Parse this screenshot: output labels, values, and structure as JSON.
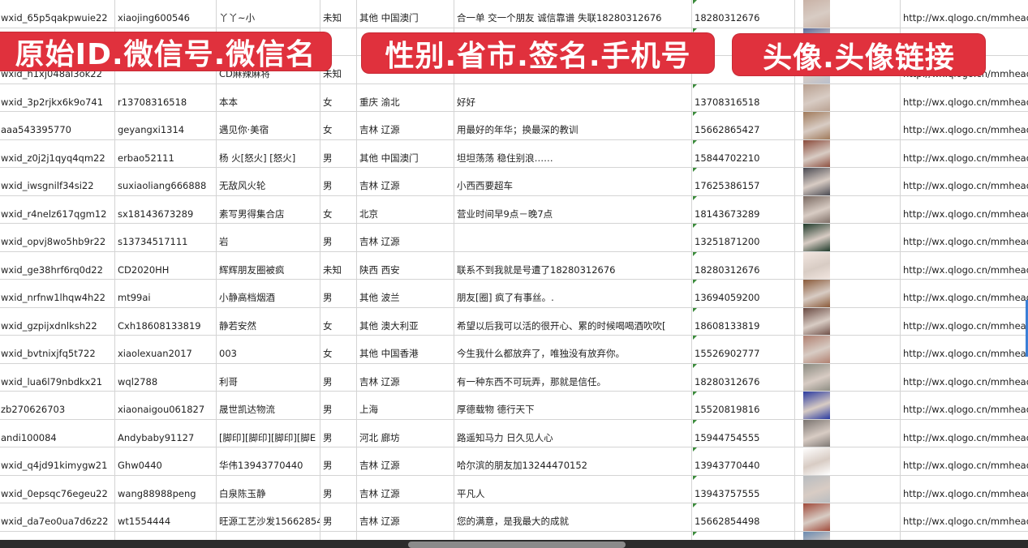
{
  "banners": {
    "left": "原始ID.微信号.微信名",
    "middle": "性别.省市.签名.手机号",
    "right": "头像.头像链接"
  },
  "rows": [
    {
      "id": "wxid_65p5qakpwuie22",
      "wechat": "xiaojing600546",
      "name": "丫丫~小",
      "gender": "未知",
      "region": "其他 中国澳门",
      "signature": "合一单 交一个朋友 诚信靠谱 失联18280312676",
      "phone": "18280312676",
      "avatar_color": "#c9b2a6",
      "url": "http://wx.qlogo.cn/mmhead"
    },
    {
      "id": "",
      "wechat": "",
      "name": "",
      "gender": "",
      "region": "",
      "signature": "",
      "phone": "",
      "avatar_color": "#5a6a9a",
      "url": ""
    },
    {
      "id": "wxid_h1xj048al3ok22",
      "wechat": "",
      "name": "CD麻辣麻将",
      "gender": "未知",
      "region": "",
      "signature": "",
      "phone": "",
      "avatar_color": "#b9bfcc",
      "url": "http://wx.qlogo.cn/mmhead"
    },
    {
      "id": "wxid_3p2rjkx6k9o741",
      "wechat": "r13708316518",
      "name": "本本",
      "gender": "女",
      "region": "重庆 渝北",
      "signature": "好好",
      "phone": "13708316518",
      "avatar_color": "#b8a090",
      "url": "http://wx.qlogo.cn/mmhead"
    },
    {
      "id": "aaa543395770",
      "wechat": "geyangxi1314",
      "name": "遇见你·美宿",
      "gender": "女",
      "region": "吉林 辽源",
      "signature": "用最好的年华；换最深的教训",
      "phone": "15662865427",
      "avatar_color": "#a07a5a",
      "url": "http://wx.qlogo.cn/mmhead"
    },
    {
      "id": "wxid_z0j2j1qyq4qm22",
      "wechat": "erbao52111",
      "name": "杨 火[怒火] [怒火]",
      "gender": "男",
      "region": "其他 中国澳门",
      "signature": "坦坦荡荡 稳住别浪……",
      "phone": "15844702210",
      "avatar_color": "#8a4a3a",
      "url": "http://wx.qlogo.cn/mmhead"
    },
    {
      "id": "wxid_iwsgnilf34si22",
      "wechat": "suxiaoliang666888",
      "name": "无敌风火轮",
      "gender": "男",
      "region": "吉林 辽源",
      "signature": "小西西要超车",
      "phone": "17625386157",
      "avatar_color": "#4a4a52",
      "url": "http://wx.qlogo.cn/mmhead"
    },
    {
      "id": "wxid_r4nelz617qgm12",
      "wechat": "sx18143673289",
      "name": "素写男得集合店",
      "gender": "女",
      "region": "北京",
      "signature": "营业时间早9点－晚7点",
      "phone": "18143673289",
      "avatar_color": "#7a6a62",
      "url": "http://wx.qlogo.cn/mmhead"
    },
    {
      "id": "wxid_opvj8wo5hb9r22",
      "wechat": "s13734517111",
      "name": "岩",
      "gender": "男",
      "region": "吉林 辽源",
      "signature": "",
      "phone": "13251871200",
      "avatar_color": "#1f3a2a",
      "url": "http://wx.qlogo.cn/mmhead"
    },
    {
      "id": "wxid_ge38hrf6rq0d22",
      "wechat": "CD2020HH",
      "name": "辉辉朋友圈被疯",
      "gender": "未知",
      "region": "陕西 西安",
      "signature": "联系不到我就是号遭了18280312676",
      "phone": "18280312676",
      "avatar_color": "#f2e6e0",
      "url": "http://wx.qlogo.cn/mmhead"
    },
    {
      "id": "wxid_nrfnw1lhqw4h22",
      "wechat": "mt99ai",
      "name": "小静高档烟酒",
      "gender": "男",
      "region": "其他 波兰",
      "signature": "朋友[圈] 疯了有事丝。.",
      "phone": "13694059200",
      "avatar_color": "#8a5a3a",
      "url": "http://wx.qlogo.cn/mmhead"
    },
    {
      "id": "wxid_gzpijxdnlksh22",
      "wechat": "Cxh18608133819",
      "name": "静若安然",
      "gender": "女",
      "region": "其他 澳大利亚",
      "signature": "希望以后我可以活的很开心、累的时候喝喝酒吹吹[",
      "phone": "18608133819",
      "avatar_color": "#6a4a42",
      "url": "http://wx.qlogo.cn/mmhead"
    },
    {
      "id": "wxid_bvtnixjfq5t722",
      "wechat": "xiaolexuan2017",
      "name": "003",
      "gender": "女",
      "region": "其他 中国香港",
      "signature": "今生我什么都放弃了，唯独没有放弃你。",
      "phone": "15526902777",
      "avatar_color": "#b08070",
      "url": "http://wx.qlogo.cn/mmhead"
    },
    {
      "id": "wxid_lua6l79nbdkx21",
      "wechat": "wql2788",
      "name": "利哥",
      "gender": "男",
      "region": "吉林 辽源",
      "signature": "有一种东西不可玩弄，那就是信任。",
      "phone": "18280312676",
      "avatar_color": "#8a8a80",
      "url": "http://wx.qlogo.cn/mmhead"
    },
    {
      "id": "zb270626703",
      "wechat": "xiaonaigou061827",
      "name": "晟世凯达物流",
      "gender": "男",
      "region": "上海",
      "signature": "厚德载物 德行天下",
      "phone": "15520819816",
      "avatar_color": "#2a3aa0",
      "url": "http://wx.qlogo.cn/mmhead"
    },
    {
      "id": "andi100084",
      "wechat": "Andybaby91127",
      "name": "[脚印][脚印][脚印][脚E",
      "gender": "男",
      "region": "河北 廊坊",
      "signature": "路遥知马力 日久见人心",
      "phone": "15944754555",
      "avatar_color": "#7a7470",
      "url": "http://wx.qlogo.cn/mmhead"
    },
    {
      "id": "wxid_q4jd91kimygw21",
      "wechat": "Ghw0440",
      "name": "华伟13943770440",
      "gender": "男",
      "region": "吉林 辽源",
      "signature": "哈尔滨的朋友加13244470152",
      "phone": "13943770440",
      "avatar_color": "#ffffff",
      "url": "http://wx.qlogo.cn/mmhead"
    },
    {
      "id": "wxid_0epsqc76egeu22",
      "wechat": "wang88988peng",
      "name": "白泉陈玉静",
      "gender": "男",
      "region": "吉林 辽源",
      "signature": "平凡人",
      "phone": "13943757555",
      "avatar_color": "#b8bcc0",
      "url": "http://wx.qlogo.cn/mmhead"
    },
    {
      "id": "wxid_da7eo0ua7d6z22",
      "wechat": "wt1554444",
      "name": "旺源工艺沙发15662854",
      "gender": "男",
      "region": "吉林 辽源",
      "signature": "您的满意，是我最大的成就",
      "phone": "15662854498",
      "avatar_color": "#a04a3a",
      "url": "http://wx.qlogo.cn/mmhead"
    },
    {
      "id": "",
      "wechat": "",
      "name": "",
      "gender": "",
      "region": "",
      "signature": "",
      "phone": "",
      "avatar_color": "#6a8ab0",
      "url": ""
    }
  ]
}
